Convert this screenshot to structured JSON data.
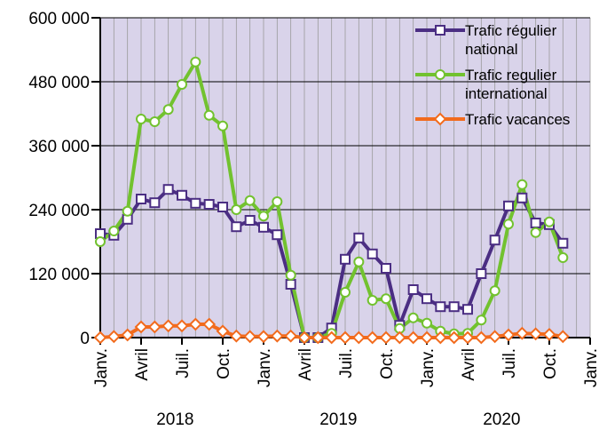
{
  "chart_data": {
    "type": "line",
    "categories": [
      "Janv.",
      null,
      null,
      "Avril",
      null,
      null,
      "Juil.",
      null,
      null,
      "Oct.",
      null,
      null,
      "Janv.",
      null,
      null,
      "Avril",
      null,
      null,
      "Juil.",
      null,
      null,
      "Oct.",
      null,
      null,
      "Janv.",
      null,
      null,
      "Avril",
      null,
      null,
      "Juil.",
      null,
      null,
      "Oct.",
      null,
      null,
      "Janv."
    ],
    "year_labels": [
      "2018",
      "2019",
      "2020"
    ],
    "series": [
      {
        "name": "Trafic régulier national",
        "color": "#4b2e83",
        "marker": "square",
        "values": [
          195000,
          192000,
          222000,
          260000,
          253000,
          278000,
          267000,
          252000,
          250000,
          245000,
          208000,
          220000,
          207000,
          193000,
          100000,
          0,
          0,
          18000,
          147000,
          187000,
          157000,
          130000,
          23000,
          90000,
          73000,
          58000,
          58000,
          53000,
          120000,
          183000,
          247000,
          262000,
          215000,
          212000,
          177000,
          null,
          null
        ]
      },
      {
        "name": "Trafic regulier international",
        "color": "#72c22f",
        "marker": "circle",
        "values": [
          180000,
          200000,
          237000,
          410000,
          405000,
          428000,
          475000,
          517000,
          417000,
          397000,
          240000,
          257000,
          228000,
          255000,
          117000,
          0,
          0,
          8000,
          85000,
          142000,
          70000,
          73000,
          17000,
          37000,
          27000,
          12000,
          7000,
          8000,
          33000,
          88000,
          213000,
          287000,
          197000,
          217000,
          150000,
          null,
          null
        ]
      },
      {
        "name": "Trafic vacances",
        "color": "#f26b1d",
        "marker": "diamond",
        "values": [
          0,
          2000,
          5000,
          20000,
          20000,
          22000,
          22000,
          25000,
          25000,
          12000,
          3000,
          2000,
          2000,
          3000,
          3000,
          0,
          0,
          0,
          0,
          0,
          0,
          0,
          0,
          0,
          0,
          0,
          0,
          0,
          0,
          2000,
          5000,
          8000,
          7000,
          6000,
          2000,
          null,
          null
        ]
      }
    ],
    "ylim": [
      0,
      600000
    ],
    "yticks": [
      {
        "value": 0,
        "label": "0"
      },
      {
        "value": 120000,
        "label": "120 000"
      },
      {
        "value": 240000,
        "label": "240 000"
      },
      {
        "value": 360000,
        "label": "360 000"
      },
      {
        "value": 480000,
        "label": "480 000"
      },
      {
        "value": 600000,
        "label": "600 000"
      }
    ],
    "grid": true,
    "legend": "upper right",
    "background": "#d9d3ea"
  }
}
